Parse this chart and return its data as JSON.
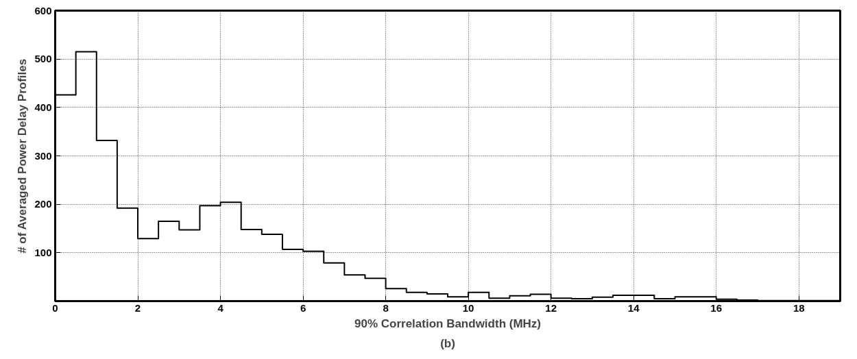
{
  "chart_data": {
    "type": "histogram",
    "xlabel": "90% Correlation Bandwidth (MHz)",
    "ylabel": "# of Averaged Power Delay Profiles",
    "annotations": [
      "(b)"
    ],
    "bins": [
      0,
      0.5,
      1,
      1.5,
      2,
      2.5,
      3,
      3.5,
      4,
      4.5,
      5,
      5.5,
      6,
      6.5,
      7,
      7.5,
      8,
      8.5,
      9,
      9.5,
      10,
      10.5,
      11,
      11.5,
      12,
      12.5,
      13,
      13.5,
      14,
      14.5,
      15,
      15.5,
      16,
      16.5,
      17,
      17.5,
      18,
      18.5,
      19
    ],
    "values": [
      426,
      515,
      332,
      192,
      129,
      165,
      147,
      197,
      204,
      148,
      138,
      107,
      103,
      79,
      54,
      47,
      26,
      18,
      15,
      9,
      18,
      6,
      11,
      14,
      6,
      5,
      8,
      12,
      12,
      5,
      9,
      9,
      4,
      2,
      1,
      1,
      1,
      1
    ],
    "color": "#000000",
    "xlim": [
      0,
      19
    ],
    "ylim": [
      0,
      600
    ],
    "xticks": [
      0,
      2,
      4,
      6,
      8,
      10,
      12,
      14,
      16,
      18
    ],
    "yticks": [
      100,
      200,
      300,
      400,
      500,
      600
    ],
    "grid": true
  }
}
